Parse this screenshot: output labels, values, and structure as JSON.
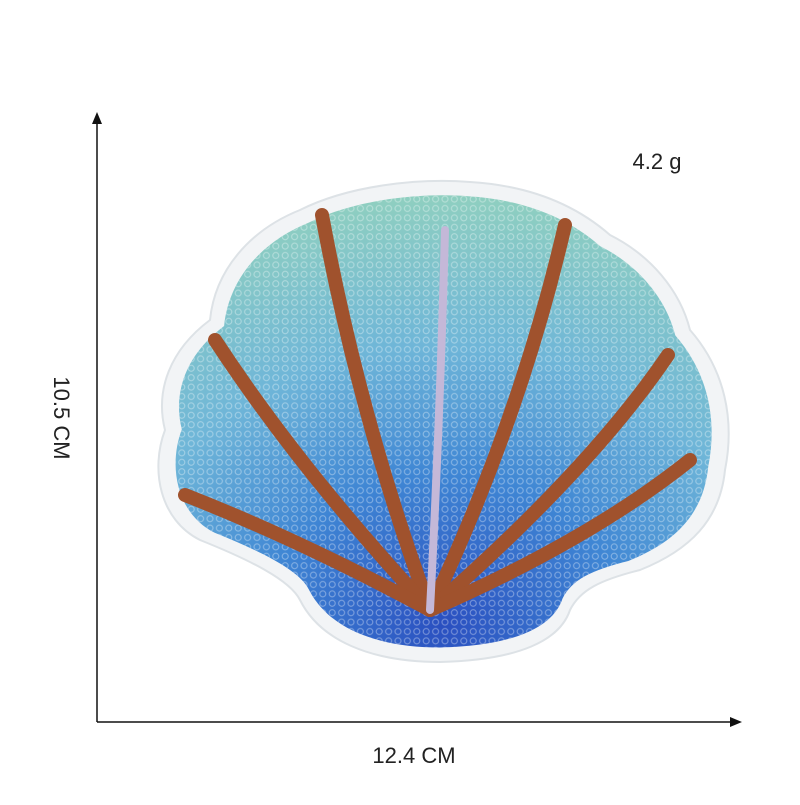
{
  "weight": "4.2 g",
  "height_label": "10.5 CM",
  "width_label": "12.4 CM"
}
